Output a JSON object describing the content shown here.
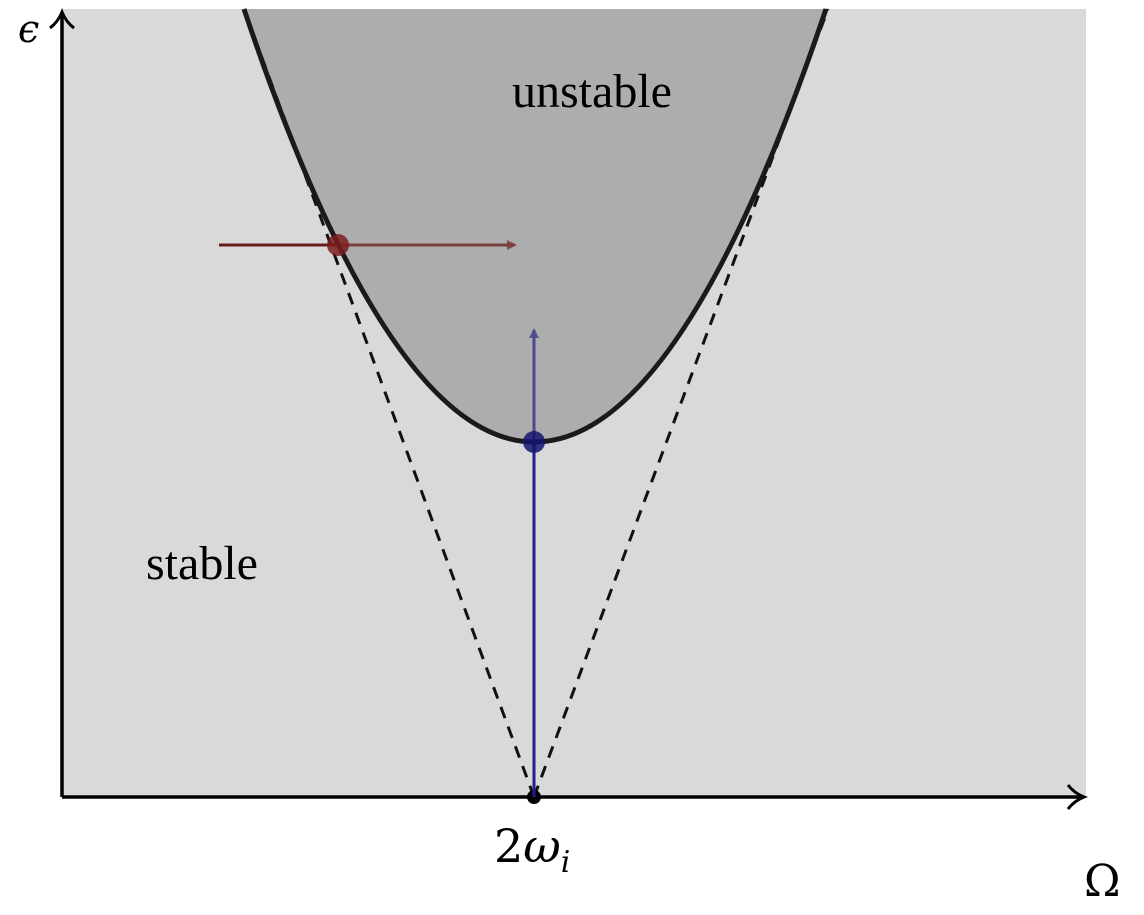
{
  "labels": {
    "y_axis": "ϵ",
    "x_axis": "Ω",
    "x_tick": "2",
    "x_tick_sym": "ω",
    "x_tick_sub": "i",
    "unstable": "unstable",
    "stable": "stable"
  },
  "colors": {
    "stable_region": "#d9d9d9",
    "unstable_region": "#adadad",
    "boundary": "#1a1a1a",
    "dashed": "#111111",
    "axis": "#000000",
    "red_path": "#6b1a1a",
    "red_point": "#7a1c1c",
    "blue_path": "#1f1f8f",
    "blue_point": "#14146e"
  }
}
